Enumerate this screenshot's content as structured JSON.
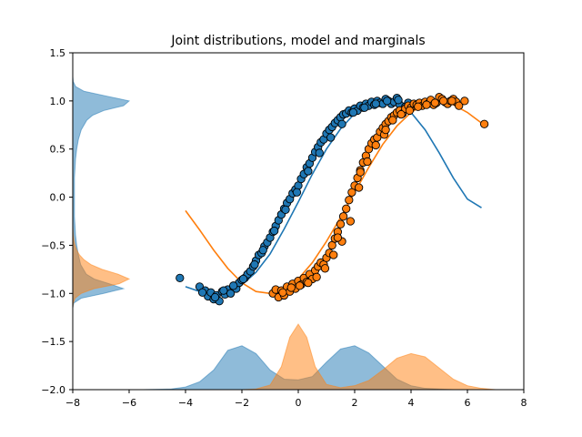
{
  "chart_data": {
    "type": "scatter",
    "title": "Joint distributions, model and marginals",
    "xlabel": "",
    "ylabel": "",
    "xlim": [
      -8,
      8
    ],
    "ylim": [
      -2.0,
      1.5
    ],
    "grid": false,
    "legend": "none",
    "x_ticks": [
      "−8",
      "−6",
      "−4",
      "−2",
      "0",
      "2",
      "4",
      "6",
      "8"
    ],
    "x_tick_values": [
      -8,
      -6,
      -4,
      -2,
      0,
      2,
      4,
      6,
      8
    ],
    "y_ticks": [
      "−2.0",
      "−1.5",
      "−1.0",
      "−0.5",
      "0.0",
      "0.5",
      "1.0",
      "1.5"
    ],
    "y_tick_values": [
      -2.0,
      -1.5,
      -1.0,
      -0.5,
      0.0,
      0.5,
      1.0,
      1.5
    ],
    "colors": {
      "blue": "#1f77b4",
      "orange": "#ff7f0e",
      "blue_fill": "#1f77b4",
      "orange_fill": "#ff7f0e"
    },
    "series": [
      {
        "color": "#1f77b4",
        "kind": "scatter+model",
        "points_x": [
          -4.2,
          -3.5,
          -3.3,
          -3.2,
          -3.1,
          -3.0,
          -2.9,
          -2.8,
          -2.7,
          -2.6,
          -2.5,
          -2.4,
          -2.3,
          -2.2,
          -2.1,
          -2.0,
          -1.9,
          -1.8,
          -1.7,
          -1.6,
          -1.5,
          -1.4,
          -1.3,
          -1.2,
          -1.1,
          -1.0,
          -0.9,
          -0.8,
          -0.7,
          -0.6,
          -0.5,
          -0.4,
          -0.3,
          -0.2,
          -0.1,
          0.0,
          0.1,
          0.2,
          0.3,
          0.4,
          0.5,
          0.6,
          0.7,
          0.8,
          0.9,
          1.0,
          1.1,
          1.2,
          1.3,
          1.4,
          1.5,
          1.6,
          1.7,
          1.8,
          1.9,
          2.0,
          2.1,
          2.2,
          2.3,
          2.4,
          2.5,
          2.6,
          2.7,
          2.8,
          2.9,
          3.0,
          3.1,
          3.2,
          3.3,
          3.4,
          3.5,
          3.6,
          3.8,
          3.9,
          -3.4,
          -2.95,
          -2.65,
          -2.3,
          -1.95,
          -1.55,
          -1.25,
          -0.85,
          -0.45,
          -0.05,
          0.35,
          0.75,
          1.15,
          1.55,
          1.95,
          2.35,
          2.75,
          3.15,
          3.55
        ],
        "points_y": [
          -0.84,
          -0.93,
          -0.97,
          -1.03,
          -0.99,
          -1.06,
          -1.02,
          -1.08,
          -0.98,
          -1.01,
          -0.96,
          -1.0,
          -0.93,
          -0.95,
          -0.89,
          -0.86,
          -0.84,
          -0.8,
          -0.77,
          -0.72,
          -0.66,
          -0.6,
          -0.58,
          -0.51,
          -0.47,
          -0.42,
          -0.36,
          -0.3,
          -0.24,
          -0.18,
          -0.12,
          -0.06,
          -0.02,
          0.04,
          0.08,
          0.12,
          0.19,
          0.24,
          0.31,
          0.35,
          0.41,
          0.47,
          0.52,
          0.57,
          0.6,
          0.66,
          0.7,
          0.73,
          0.77,
          0.8,
          0.83,
          0.86,
          0.87,
          0.9,
          0.88,
          0.92,
          0.9,
          0.95,
          0.93,
          0.97,
          0.95,
          0.99,
          0.96,
          1.0,
          0.98,
          0.97,
          1.02,
          1.0,
          0.97,
          0.99,
          1.03,
          0.96,
          0.94,
          0.98,
          -0.99,
          -1.04,
          -0.97,
          -0.92,
          -0.85,
          -0.7,
          -0.55,
          -0.35,
          -0.13,
          0.05,
          0.27,
          0.46,
          0.62,
          0.76,
          0.88,
          0.93,
          0.97,
          1.0,
          1.01
        ],
        "model_x": [
          -4.0,
          -3.5,
          -3.0,
          -2.5,
          -2.0,
          -1.5,
          -1.0,
          -0.5,
          0.0,
          0.5,
          1.0,
          1.5,
          2.0,
          2.5,
          3.0,
          3.5,
          4.0,
          4.5,
          5.0,
          5.5,
          6.0,
          6.5
        ],
        "model_y": [
          -0.93,
          -0.98,
          -1.0,
          -0.98,
          -0.91,
          -0.78,
          -0.59,
          -0.33,
          -0.05,
          0.24,
          0.5,
          0.71,
          0.87,
          0.96,
          1.0,
          0.98,
          0.88,
          0.7,
          0.46,
          0.2,
          -0.02,
          -0.11
        ]
      },
      {
        "color": "#ff7f0e",
        "kind": "scatter+model",
        "points_x": [
          -0.9,
          -0.8,
          -0.7,
          -0.6,
          -0.5,
          -0.4,
          -0.3,
          -0.2,
          -0.1,
          0.0,
          0.1,
          0.2,
          0.3,
          0.4,
          0.5,
          0.6,
          0.7,
          0.8,
          0.9,
          1.0,
          1.1,
          1.2,
          1.3,
          1.4,
          1.5,
          1.6,
          1.7,
          1.8,
          1.9,
          2.0,
          2.1,
          2.2,
          2.3,
          2.4,
          2.5,
          2.6,
          2.7,
          2.8,
          2.9,
          3.0,
          3.1,
          3.2,
          3.3,
          3.4,
          3.5,
          3.6,
          3.7,
          3.8,
          3.9,
          4.0,
          4.1,
          4.2,
          4.3,
          4.4,
          4.5,
          4.6,
          4.7,
          4.8,
          4.9,
          5.0,
          5.1,
          5.2,
          5.3,
          5.4,
          5.5,
          5.6,
          5.7,
          5.9,
          6.6,
          -0.55,
          -0.25,
          0.05,
          0.35,
          0.65,
          0.95,
          1.25,
          1.55,
          1.85,
          2.15,
          2.45,
          2.75,
          3.05,
          3.35,
          3.65,
          3.95,
          4.25,
          4.55,
          4.85,
          5.15,
          5.45,
          1.4,
          2.2,
          3.1
        ],
        "points_y": [
          -1.0,
          -0.96,
          -1.04,
          -0.97,
          -1.02,
          -0.93,
          -0.98,
          -0.9,
          -0.95,
          -0.87,
          -0.91,
          -0.84,
          -0.88,
          -0.8,
          -0.85,
          -0.76,
          -0.72,
          -0.68,
          -0.7,
          -0.63,
          -0.58,
          -0.5,
          -0.43,
          -0.36,
          -0.28,
          -0.2,
          -0.12,
          -0.03,
          0.05,
          0.12,
          0.2,
          0.28,
          0.36,
          0.43,
          0.5,
          0.56,
          0.6,
          0.62,
          0.68,
          0.72,
          0.76,
          0.79,
          0.83,
          0.85,
          0.88,
          0.9,
          0.87,
          0.92,
          0.95,
          0.93,
          0.97,
          0.96,
          0.98,
          0.95,
          0.99,
          0.97,
          1.01,
          0.96,
          0.98,
          1.04,
          1.02,
          0.99,
          0.97,
          1.0,
          1.02,
          0.99,
          0.95,
          1.0,
          0.76,
          -0.99,
          -0.94,
          -0.92,
          -0.89,
          -0.83,
          -0.74,
          -0.6,
          -0.46,
          -0.25,
          0.1,
          0.37,
          0.54,
          0.65,
          0.8,
          0.86,
          0.9,
          0.94,
          0.96,
          0.98,
          1.0,
          1.0,
          -0.42,
          0.26,
          0.7
        ],
        "model_x": [
          -4.0,
          -3.5,
          -3.0,
          -2.5,
          -2.0,
          -1.5,
          -1.0,
          -0.5,
          0.0,
          0.5,
          1.0,
          1.5,
          2.0,
          2.5,
          3.0,
          3.5,
          4.0,
          4.5,
          5.0,
          5.5,
          6.0,
          6.5
        ],
        "model_y": [
          -0.14,
          -0.34,
          -0.55,
          -0.74,
          -0.89,
          -0.98,
          -1.0,
          -0.96,
          -0.85,
          -0.68,
          -0.46,
          -0.21,
          0.05,
          0.31,
          0.55,
          0.74,
          0.88,
          0.97,
          1.0,
          0.96,
          0.88,
          0.77
        ]
      }
    ],
    "marginals_x": [
      {
        "color": "#1f77b4",
        "alpha": 0.5,
        "x": [
          -6.5,
          -5.5,
          -4.5,
          -4.0,
          -3.5,
          -3.0,
          -2.5,
          -2.0,
          -1.5,
          -1.0,
          -0.5,
          0.0,
          0.5,
          1.0,
          1.5,
          2.0,
          2.5,
          3.0,
          3.5,
          4.0,
          4.5,
          5.0,
          5.5,
          6.0,
          7.0
        ],
        "density": [
          0.0,
          0.0,
          0.01,
          0.04,
          0.12,
          0.3,
          0.6,
          0.67,
          0.55,
          0.3,
          0.16,
          0.15,
          0.2,
          0.42,
          0.62,
          0.67,
          0.56,
          0.36,
          0.16,
          0.06,
          0.02,
          0.01,
          0.0,
          0.0,
          0.0
        ]
      },
      {
        "color": "#ff7f0e",
        "alpha": 0.5,
        "x": [
          -3.0,
          -2.0,
          -1.5,
          -1.0,
          -0.6,
          -0.3,
          0.0,
          0.3,
          0.6,
          1.0,
          1.5,
          2.0,
          2.5,
          3.0,
          3.5,
          4.0,
          4.5,
          5.0,
          5.5,
          6.0,
          6.5,
          7.0,
          8.0
        ],
        "density": [
          0.0,
          0.0,
          0.01,
          0.07,
          0.35,
          0.8,
          1.0,
          0.8,
          0.35,
          0.08,
          0.03,
          0.06,
          0.14,
          0.3,
          0.48,
          0.55,
          0.5,
          0.33,
          0.16,
          0.06,
          0.02,
          0.0,
          0.0
        ]
      }
    ],
    "marginals_y": [
      {
        "color": "#1f77b4",
        "alpha": 0.5,
        "y": [
          -1.15,
          -1.1,
          -1.05,
          -1.0,
          -0.95,
          -0.9,
          -0.85,
          -0.8,
          -0.7,
          -0.6,
          -0.5,
          -0.4,
          -0.2,
          0.0,
          0.2,
          0.4,
          0.5,
          0.6,
          0.7,
          0.8,
          0.85,
          0.9,
          0.95,
          1.0,
          1.05,
          1.1,
          1.15,
          1.2,
          1.25
        ],
        "density": [
          0.0,
          0.02,
          0.15,
          0.55,
          0.9,
          0.65,
          0.38,
          0.24,
          0.14,
          0.1,
          0.07,
          0.05,
          0.03,
          0.03,
          0.03,
          0.05,
          0.07,
          0.1,
          0.15,
          0.25,
          0.35,
          0.55,
          0.9,
          1.0,
          0.6,
          0.2,
          0.05,
          0.01,
          0.0
        ]
      },
      {
        "color": "#ff7f0e",
        "alpha": 0.5,
        "y": [
          -1.15,
          -1.1,
          -1.05,
          -1.0,
          -0.95,
          -0.9,
          -0.85,
          -0.8,
          -0.75,
          -0.7,
          -0.65,
          -0.6,
          -0.55,
          -0.5,
          -0.45,
          -0.4,
          -0.3
        ],
        "density": [
          0.0,
          0.01,
          0.04,
          0.15,
          0.38,
          0.82,
          1.0,
          0.8,
          0.52,
          0.32,
          0.2,
          0.12,
          0.07,
          0.04,
          0.02,
          0.01,
          0.0
        ]
      }
    ]
  }
}
